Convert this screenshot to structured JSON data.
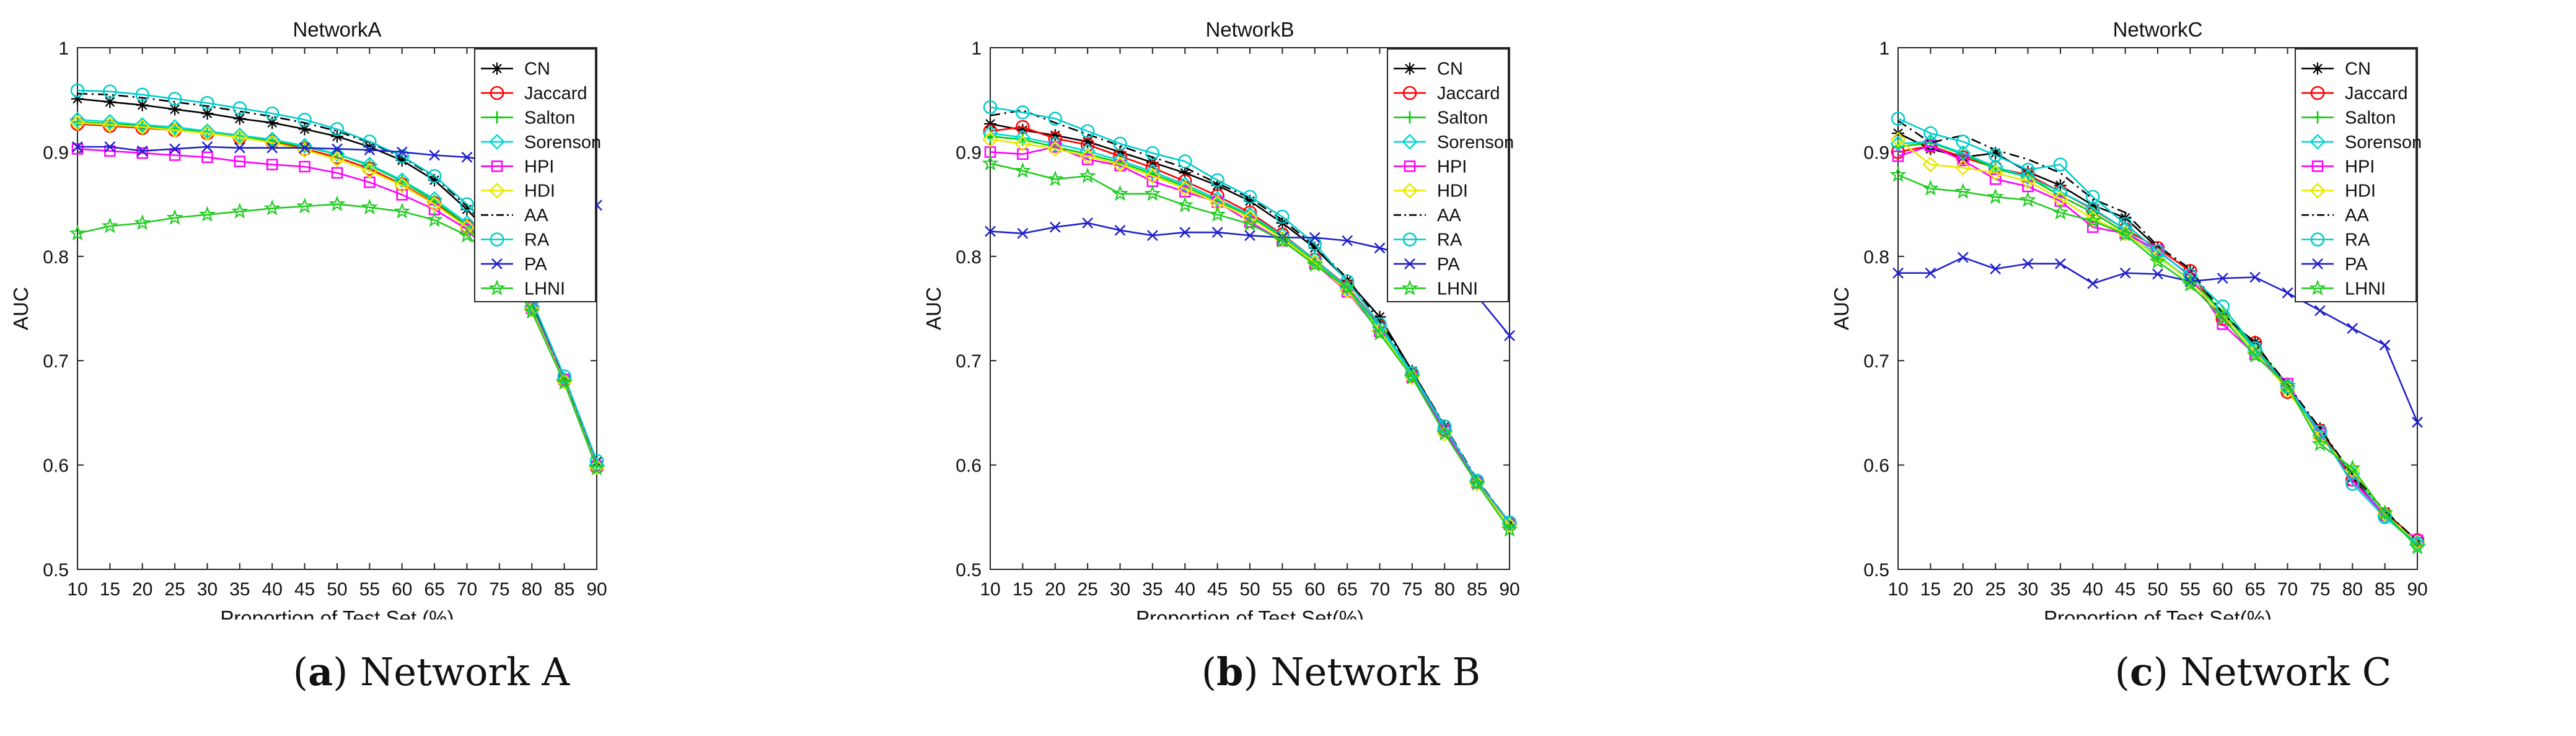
{
  "figure": {
    "captions": [
      {
        "tag": "a",
        "text": "Network A"
      },
      {
        "tag": "b",
        "text": "Network B"
      },
      {
        "tag": "c",
        "text": "Network C"
      }
    ]
  },
  "series_styles": {
    "CN": {
      "color": "#000000",
      "marker": "asterisk",
      "dash": ""
    },
    "Jaccard": {
      "color": "#ff0000",
      "marker": "circle",
      "dash": ""
    },
    "Salton": {
      "color": "#00cc00",
      "marker": "plus",
      "dash": ""
    },
    "Sorenson": {
      "color": "#00d8d8",
      "marker": "diamond",
      "dash": ""
    },
    "HPI": {
      "color": "#ff00ff",
      "marker": "square",
      "dash": ""
    },
    "HDI": {
      "color": "#e8e800",
      "marker": "diamond",
      "dash": ""
    },
    "AA": {
      "color": "#000000",
      "marker": "none",
      "dash": "dashdot"
    },
    "RA": {
      "color": "#00cccc",
      "marker": "circle",
      "dash": ""
    },
    "PA": {
      "color": "#1f1fcc",
      "marker": "x",
      "dash": ""
    },
    "LHNI": {
      "color": "#22cc22",
      "marker": "star",
      "dash": ""
    }
  },
  "chart_data": [
    {
      "type": "line",
      "title": "NetworkA",
      "xlabel": "Proportion of Test Set (%)",
      "ylabel": "AUC",
      "xlim": [
        10,
        90
      ],
      "ylim": [
        0.5,
        1
      ],
      "xticks": [
        "10",
        "15",
        "20",
        "25",
        "30",
        "35",
        "40",
        "45",
        "50",
        "55",
        "60",
        "65",
        "70",
        "75",
        "80",
        "85",
        "90"
      ],
      "yticks": [
        "0.5",
        "0.6",
        "0.7",
        "0.8",
        "0.9",
        "1"
      ],
      "legend_position": "top-right",
      "x": [
        10,
        15,
        20,
        25,
        30,
        35,
        40,
        45,
        50,
        55,
        60,
        65,
        70,
        75,
        80,
        85,
        90
      ],
      "series": [
        {
          "name": "CN",
          "values": [
            0.951,
            0.948,
            0.945,
            0.941,
            0.937,
            0.932,
            0.928,
            0.922,
            0.915,
            0.905,
            0.892,
            0.873,
            0.845,
            0.812,
            0.755,
            0.683,
            0.603
          ]
        },
        {
          "name": "Jaccard",
          "values": [
            0.927,
            0.925,
            0.923,
            0.921,
            0.918,
            0.914,
            0.91,
            0.903,
            0.895,
            0.884,
            0.869,
            0.851,
            0.829,
            0.795,
            0.75,
            0.681,
            0.598
          ]
        },
        {
          "name": "Salton",
          "values": [
            0.929,
            0.927,
            0.925,
            0.922,
            0.919,
            0.915,
            0.911,
            0.905,
            0.898,
            0.887,
            0.872,
            0.853,
            0.83,
            0.797,
            0.751,
            0.682,
            0.599
          ]
        },
        {
          "name": "Sorenson",
          "values": [
            0.931,
            0.929,
            0.926,
            0.924,
            0.92,
            0.916,
            0.912,
            0.906,
            0.898,
            0.888,
            0.873,
            0.855,
            0.832,
            0.799,
            0.752,
            0.682,
            0.6
          ]
        },
        {
          "name": "HPI",
          "values": [
            0.903,
            0.901,
            0.899,
            0.897,
            0.895,
            0.891,
            0.888,
            0.886,
            0.88,
            0.871,
            0.859,
            0.845,
            0.826,
            0.793,
            0.75,
            0.682,
            0.599
          ]
        },
        {
          "name": "HDI",
          "values": [
            0.928,
            0.926,
            0.924,
            0.921,
            0.918,
            0.914,
            0.909,
            0.902,
            0.893,
            0.882,
            0.868,
            0.85,
            0.828,
            0.794,
            0.749,
            0.68,
            0.598
          ]
        },
        {
          "name": "AA",
          "values": [
            0.956,
            0.955,
            0.952,
            0.948,
            0.944,
            0.939,
            0.934,
            0.928,
            0.92,
            0.909,
            0.895,
            0.876,
            0.848,
            0.814,
            0.757,
            0.684,
            0.603
          ]
        },
        {
          "name": "RA",
          "values": [
            0.959,
            0.958,
            0.955,
            0.951,
            0.947,
            0.942,
            0.937,
            0.931,
            0.922,
            0.91,
            0.896,
            0.877,
            0.85,
            0.815,
            0.758,
            0.685,
            0.604
          ]
        },
        {
          "name": "PA",
          "values": [
            0.905,
            0.905,
            0.901,
            0.903,
            0.905,
            0.904,
            0.904,
            0.904,
            0.903,
            0.902,
            0.9,
            0.897,
            0.895,
            0.891,
            0.883,
            0.87,
            0.849
          ]
        },
        {
          "name": "LHNI",
          "values": [
            0.822,
            0.829,
            0.832,
            0.837,
            0.84,
            0.843,
            0.846,
            0.848,
            0.85,
            0.847,
            0.843,
            0.835,
            0.82,
            0.793,
            0.747,
            0.679,
            0.597
          ]
        }
      ]
    },
    {
      "type": "line",
      "title": "NetworkB",
      "xlabel": "Proportion of Test Set(%)",
      "ylabel": "AUC",
      "xlim": [
        10,
        90
      ],
      "ylim": [
        0.5,
        1
      ],
      "xticks": [
        "10",
        "15",
        "20",
        "25",
        "30",
        "35",
        "40",
        "45",
        "50",
        "55",
        "60",
        "65",
        "70",
        "75",
        "80",
        "85",
        "90"
      ],
      "yticks": [
        "0.5",
        "0.6",
        "0.7",
        "0.8",
        "0.9",
        "1"
      ],
      "legend_position": "top-right",
      "x": [
        10,
        15,
        20,
        25,
        30,
        35,
        40,
        45,
        50,
        55,
        60,
        65,
        70,
        75,
        80,
        85,
        90
      ],
      "series": [
        {
          "name": "CN",
          "values": [
            0.927,
            0.921,
            0.916,
            0.91,
            0.9,
            0.89,
            0.88,
            0.868,
            0.853,
            0.832,
            0.808,
            0.777,
            0.742,
            0.69,
            0.637,
            0.585,
            0.545
          ]
        },
        {
          "name": "Jaccard",
          "values": [
            0.92,
            0.924,
            0.913,
            0.907,
            0.896,
            0.885,
            0.872,
            0.858,
            0.842,
            0.821,
            0.797,
            0.771,
            0.733,
            0.687,
            0.634,
            0.584,
            0.544
          ]
        },
        {
          "name": "Salton",
          "values": [
            0.915,
            0.912,
            0.905,
            0.898,
            0.89,
            0.879,
            0.867,
            0.853,
            0.839,
            0.818,
            0.795,
            0.768,
            0.73,
            0.685,
            0.633,
            0.583,
            0.543
          ]
        },
        {
          "name": "Sorenson",
          "values": [
            0.918,
            0.914,
            0.908,
            0.901,
            0.892,
            0.881,
            0.869,
            0.855,
            0.84,
            0.82,
            0.797,
            0.77,
            0.732,
            0.686,
            0.634,
            0.584,
            0.544
          ]
        },
        {
          "name": "HPI",
          "values": [
            0.9,
            0.898,
            0.905,
            0.893,
            0.887,
            0.872,
            0.862,
            0.852,
            0.833,
            0.815,
            0.793,
            0.766,
            0.728,
            0.684,
            0.633,
            0.583,
            0.543
          ]
        },
        {
          "name": "HDI",
          "values": [
            0.912,
            0.908,
            0.903,
            0.896,
            0.888,
            0.877,
            0.865,
            0.851,
            0.837,
            0.817,
            0.794,
            0.767,
            0.729,
            0.684,
            0.63,
            0.582,
            0.542
          ]
        },
        {
          "name": "AA",
          "values": [
            0.935,
            0.94,
            0.928,
            0.917,
            0.906,
            0.895,
            0.885,
            0.87,
            0.856,
            0.835,
            0.81,
            0.779,
            0.738,
            0.69,
            0.638,
            0.586,
            0.545
          ]
        },
        {
          "name": "RA",
          "values": [
            0.943,
            0.938,
            0.932,
            0.92,
            0.908,
            0.899,
            0.891,
            0.873,
            0.857,
            0.838,
            0.812,
            0.776,
            0.735,
            0.688,
            0.637,
            0.585,
            0.545
          ]
        },
        {
          "name": "PA",
          "values": [
            0.824,
            0.822,
            0.828,
            0.832,
            0.825,
            0.82,
            0.823,
            0.823,
            0.82,
            0.818,
            0.818,
            0.815,
            0.808,
            0.8,
            0.787,
            0.762,
            0.724
          ]
        },
        {
          "name": "LHNI",
          "values": [
            0.889,
            0.882,
            0.874,
            0.877,
            0.86,
            0.86,
            0.849,
            0.84,
            0.831,
            0.815,
            0.792,
            0.77,
            0.726,
            0.684,
            0.63,
            0.582,
            0.538
          ]
        }
      ]
    },
    {
      "type": "line",
      "title": "NetworkC",
      "xlabel": "Proportion of Test Set(%)",
      "ylabel": "AUC",
      "xlim": [
        10,
        90
      ],
      "ylim": [
        0.5,
        1
      ],
      "xticks": [
        "10",
        "15",
        "20",
        "25",
        "30",
        "35",
        "40",
        "45",
        "50",
        "55",
        "60",
        "65",
        "70",
        "75",
        "80",
        "85",
        "90"
      ],
      "yticks": [
        "0.5",
        "0.6",
        "0.7",
        "0.8",
        "0.9",
        "1"
      ],
      "legend_position": "top-right",
      "x": [
        10,
        15,
        20,
        25,
        30,
        35,
        40,
        45,
        50,
        55,
        60,
        65,
        70,
        75,
        80,
        85,
        90
      ],
      "series": [
        {
          "name": "CN",
          "values": [
            0.918,
            0.903,
            0.895,
            0.899,
            0.881,
            0.868,
            0.849,
            0.837,
            0.808,
            0.786,
            0.742,
            0.718,
            0.672,
            0.635,
            0.588,
            0.555,
            0.527
          ]
        },
        {
          "name": "Jaccard",
          "values": [
            0.9,
            0.906,
            0.895,
            0.885,
            0.878,
            0.862,
            0.845,
            0.826,
            0.808,
            0.786,
            0.74,
            0.717,
            0.67,
            0.633,
            0.586,
            0.553,
            0.528
          ]
        },
        {
          "name": "Salton",
          "values": [
            0.905,
            0.909,
            0.898,
            0.884,
            0.876,
            0.858,
            0.842,
            0.823,
            0.799,
            0.778,
            0.747,
            0.712,
            0.678,
            0.628,
            0.593,
            0.55,
            0.524
          ]
        },
        {
          "name": "Sorenson",
          "values": [
            0.908,
            0.91,
            0.899,
            0.886,
            0.876,
            0.862,
            0.846,
            0.826,
            0.801,
            0.777,
            0.745,
            0.71,
            0.676,
            0.628,
            0.592,
            0.551,
            0.524
          ]
        },
        {
          "name": "HPI",
          "values": [
            0.896,
            0.906,
            0.892,
            0.874,
            0.867,
            0.853,
            0.828,
            0.822,
            0.806,
            0.781,
            0.735,
            0.706,
            0.678,
            0.63,
            0.585,
            0.552,
            0.528
          ]
        },
        {
          "name": "HDI",
          "values": [
            0.912,
            0.888,
            0.885,
            0.88,
            0.872,
            0.855,
            0.836,
            0.822,
            0.8,
            0.776,
            0.744,
            0.708,
            0.672,
            0.626,
            0.595,
            0.553,
            0.526
          ]
        },
        {
          "name": "AA",
          "values": [
            0.93,
            0.909,
            0.916,
            0.902,
            0.893,
            0.88,
            0.855,
            0.842,
            0.81,
            0.788,
            0.745,
            0.716,
            0.677,
            0.635,
            0.591,
            0.556,
            0.527
          ]
        },
        {
          "name": "RA",
          "values": [
            0.932,
            0.918,
            0.91,
            0.897,
            0.883,
            0.888,
            0.857,
            0.831,
            0.805,
            0.782,
            0.752,
            0.712,
            0.675,
            0.632,
            0.582,
            0.55,
            0.525
          ]
        },
        {
          "name": "PA",
          "values": [
            0.784,
            0.784,
            0.799,
            0.788,
            0.793,
            0.793,
            0.774,
            0.784,
            0.783,
            0.776,
            0.779,
            0.78,
            0.765,
            0.748,
            0.731,
            0.715,
            0.641
          ]
        },
        {
          "name": "LHNI",
          "values": [
            0.878,
            0.865,
            0.862,
            0.857,
            0.854,
            0.842,
            0.834,
            0.821,
            0.795,
            0.773,
            0.741,
            0.705,
            0.676,
            0.62,
            0.597,
            0.554,
            0.521
          ]
        }
      ]
    }
  ]
}
